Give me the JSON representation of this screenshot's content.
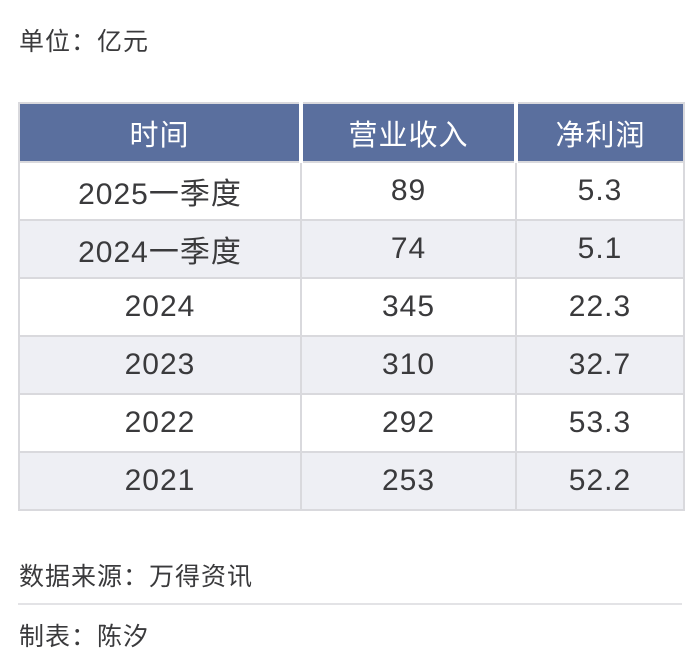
{
  "page": {
    "unit_label": "单位：亿元"
  },
  "chart_data": {
    "type": "table",
    "columns": [
      "时间",
      "营业收入",
      "净利润"
    ],
    "rows": [
      [
        "2025一季度",
        "89",
        "5.3"
      ],
      [
        "2024一季度",
        "74",
        "5.1"
      ],
      [
        "2024",
        "345",
        "22.3"
      ],
      [
        "2023",
        "310",
        "32.7"
      ],
      [
        "2022",
        "292",
        "53.3"
      ],
      [
        "2021",
        "253",
        "52.2"
      ]
    ]
  },
  "footer": {
    "source_label": "数据来源：万得资讯",
    "author_label": "制表：陈汐"
  },
  "colors": {
    "header_bg": "#5a6f9e",
    "header_text": "#ffffff",
    "row_alt_bg": "#eeeff4",
    "border": "#d9d9dd",
    "text": "#3a3a3c"
  }
}
